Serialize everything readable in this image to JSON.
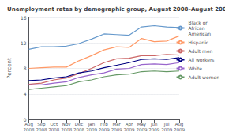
{
  "chart_data": {
    "type": "line",
    "title": "Unemployment rates by demographic group, August 2008–August 2009",
    "ylabel": "Percent",
    "categories": [
      "Aug\n2008",
      "Sep\n2008",
      "Oct\n2008",
      "Nov\n2008",
      "Dec\n2008",
      "Jan\n2009",
      "Feb\n2009",
      "Mar\n2009",
      "Apr\n2009",
      "May\n2009",
      "Jun\n2009",
      "Jul\n2009",
      "Aug\n2009"
    ],
    "series": [
      {
        "name": "Black or\nAfrican\nAmerican",
        "color": "#6699cc",
        "values": [
          11.0,
          11.4,
          11.4,
          11.5,
          11.9,
          12.6,
          13.4,
          13.3,
          13.2,
          14.5,
          14.7,
          14.5,
          14.4
        ]
      },
      {
        "name": "Hispanic",
        "color": "#ff9966",
        "values": [
          8.0,
          8.1,
          8.2,
          8.2,
          9.2,
          10.0,
          10.9,
          11.4,
          11.3,
          12.7,
          12.2,
          12.3,
          13.1
        ]
      },
      {
        "name": "Adult men",
        "color": "#cc6666",
        "values": [
          5.5,
          5.7,
          6.2,
          6.5,
          7.2,
          8.0,
          8.9,
          9.5,
          9.6,
          10.0,
          10.0,
          10.2,
          10.1
        ]
      },
      {
        "name": "All workers",
        "color": "#000080",
        "values": [
          6.1,
          6.2,
          6.5,
          6.7,
          7.3,
          7.6,
          8.1,
          8.5,
          8.9,
          9.4,
          9.5,
          9.4,
          9.7
        ]
      },
      {
        "name": "White",
        "color": "#9966cc",
        "values": [
          5.4,
          5.4,
          5.7,
          5.9,
          6.6,
          7.0,
          7.3,
          7.9,
          8.0,
          8.6,
          8.7,
          8.6,
          8.9
        ]
      },
      {
        "name": "Adult women",
        "color": "#669966",
        "values": [
          4.7,
          4.9,
          5.1,
          5.3,
          5.9,
          6.2,
          6.7,
          7.0,
          7.1,
          7.5,
          7.6,
          7.5,
          7.6
        ]
      }
    ],
    "ylim": [
      0,
      16
    ],
    "yticks": [
      0,
      4,
      8,
      12,
      16
    ],
    "grid": true,
    "legend": "right"
  }
}
